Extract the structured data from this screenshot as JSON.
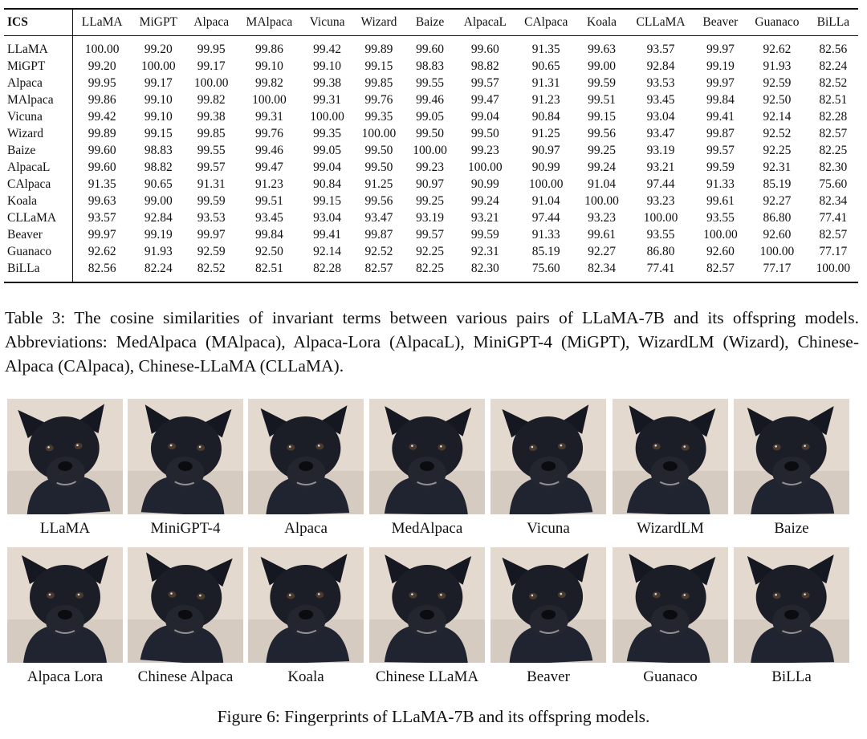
{
  "table": {
    "corner": "ICS",
    "columns": [
      "LLaMA",
      "MiGPT",
      "Alpaca",
      "MAlpaca",
      "Vicuna",
      "Wizard",
      "Baize",
      "AlpacaL",
      "CAlpaca",
      "Koala",
      "CLLaMA",
      "Beaver",
      "Guanaco",
      "BiLLa"
    ],
    "rows": [
      {
        "name": "LLaMA",
        "values": [
          "100.00",
          "99.20",
          "99.95",
          "99.86",
          "99.42",
          "99.89",
          "99.60",
          "99.60",
          "91.35",
          "99.63",
          "93.57",
          "99.97",
          "92.62",
          "82.56"
        ]
      },
      {
        "name": "MiGPT",
        "values": [
          "99.20",
          "100.00",
          "99.17",
          "99.10",
          "99.10",
          "99.15",
          "98.83",
          "98.82",
          "90.65",
          "99.00",
          "92.84",
          "99.19",
          "91.93",
          "82.24"
        ]
      },
      {
        "name": "Alpaca",
        "values": [
          "99.95",
          "99.17",
          "100.00",
          "99.82",
          "99.38",
          "99.85",
          "99.55",
          "99.57",
          "91.31",
          "99.59",
          "93.53",
          "99.97",
          "92.59",
          "82.52"
        ]
      },
      {
        "name": "MAlpaca",
        "values": [
          "99.86",
          "99.10",
          "99.82",
          "100.00",
          "99.31",
          "99.76",
          "99.46",
          "99.47",
          "91.23",
          "99.51",
          "93.45",
          "99.84",
          "92.50",
          "82.51"
        ]
      },
      {
        "name": "Vicuna",
        "values": [
          "99.42",
          "99.10",
          "99.38",
          "99.31",
          "100.00",
          "99.35",
          "99.05",
          "99.04",
          "90.84",
          "99.15",
          "93.04",
          "99.41",
          "92.14",
          "82.28"
        ]
      },
      {
        "name": "Wizard",
        "values": [
          "99.89",
          "99.15",
          "99.85",
          "99.76",
          "99.35",
          "100.00",
          "99.50",
          "99.50",
          "91.25",
          "99.56",
          "93.47",
          "99.87",
          "92.52",
          "82.57"
        ]
      },
      {
        "name": "Baize",
        "values": [
          "99.60",
          "98.83",
          "99.55",
          "99.46",
          "99.05",
          "99.50",
          "100.00",
          "99.23",
          "90.97",
          "99.25",
          "93.19",
          "99.57",
          "92.25",
          "82.25"
        ]
      },
      {
        "name": "AlpacaL",
        "values": [
          "99.60",
          "98.82",
          "99.57",
          "99.47",
          "99.04",
          "99.50",
          "99.23",
          "100.00",
          "90.99",
          "99.24",
          "93.21",
          "99.59",
          "92.31",
          "82.30"
        ]
      },
      {
        "name": "CAlpaca",
        "values": [
          "91.35",
          "90.65",
          "91.31",
          "91.23",
          "90.84",
          "91.25",
          "90.97",
          "90.99",
          "100.00",
          "91.04",
          "97.44",
          "91.33",
          "85.19",
          "75.60"
        ]
      },
      {
        "name": "Koala",
        "values": [
          "99.63",
          "99.00",
          "99.59",
          "99.51",
          "99.15",
          "99.56",
          "99.25",
          "99.24",
          "91.04",
          "100.00",
          "93.23",
          "99.61",
          "92.27",
          "82.34"
        ]
      },
      {
        "name": "CLLaMA",
        "values": [
          "93.57",
          "92.84",
          "93.53",
          "93.45",
          "93.04",
          "93.47",
          "93.19",
          "93.21",
          "97.44",
          "93.23",
          "100.00",
          "93.55",
          "86.80",
          "77.41"
        ]
      },
      {
        "name": "Beaver",
        "values": [
          "99.97",
          "99.19",
          "99.97",
          "99.84",
          "99.41",
          "99.87",
          "99.57",
          "99.59",
          "91.33",
          "99.61",
          "93.55",
          "100.00",
          "92.60",
          "82.57"
        ]
      },
      {
        "name": "Guanaco",
        "values": [
          "92.62",
          "91.93",
          "92.59",
          "92.50",
          "92.14",
          "92.52",
          "92.25",
          "92.31",
          "85.19",
          "92.27",
          "86.80",
          "92.60",
          "100.00",
          "77.17"
        ]
      },
      {
        "name": "BiLLa",
        "values": [
          "82.56",
          "82.24",
          "82.52",
          "82.51",
          "82.28",
          "82.57",
          "82.25",
          "82.30",
          "75.60",
          "82.34",
          "77.41",
          "82.57",
          "77.17",
          "100.00"
        ]
      }
    ]
  },
  "table_caption": "Table 3: The cosine similarities of invariant terms between various pairs of LLaMA-7B and its offspring models. Abbreviations: MedAlpaca (MAlpaca), Alpaca-Lora (AlpacaL), MiniGPT-4 (MiGPT), WizardLM (Wizard), Chinese-Alpaca (CAlpaca), Chinese-LLaMA (CLLaMA).",
  "figure": {
    "rows": [
      [
        "LLaMA",
        "MiniGPT-4",
        "Alpaca",
        "MedAlpaca",
        "Vicuna",
        "WizardLM",
        "Baize"
      ],
      [
        "Alpaca Lora",
        "Chinese Alpaca",
        "Koala",
        "Chinese LLaMA",
        "Beaver",
        "Guanaco",
        "BiLLa"
      ]
    ],
    "caption": "Figure 6: Fingerprints of LLaMA-7B and its offspring models."
  }
}
